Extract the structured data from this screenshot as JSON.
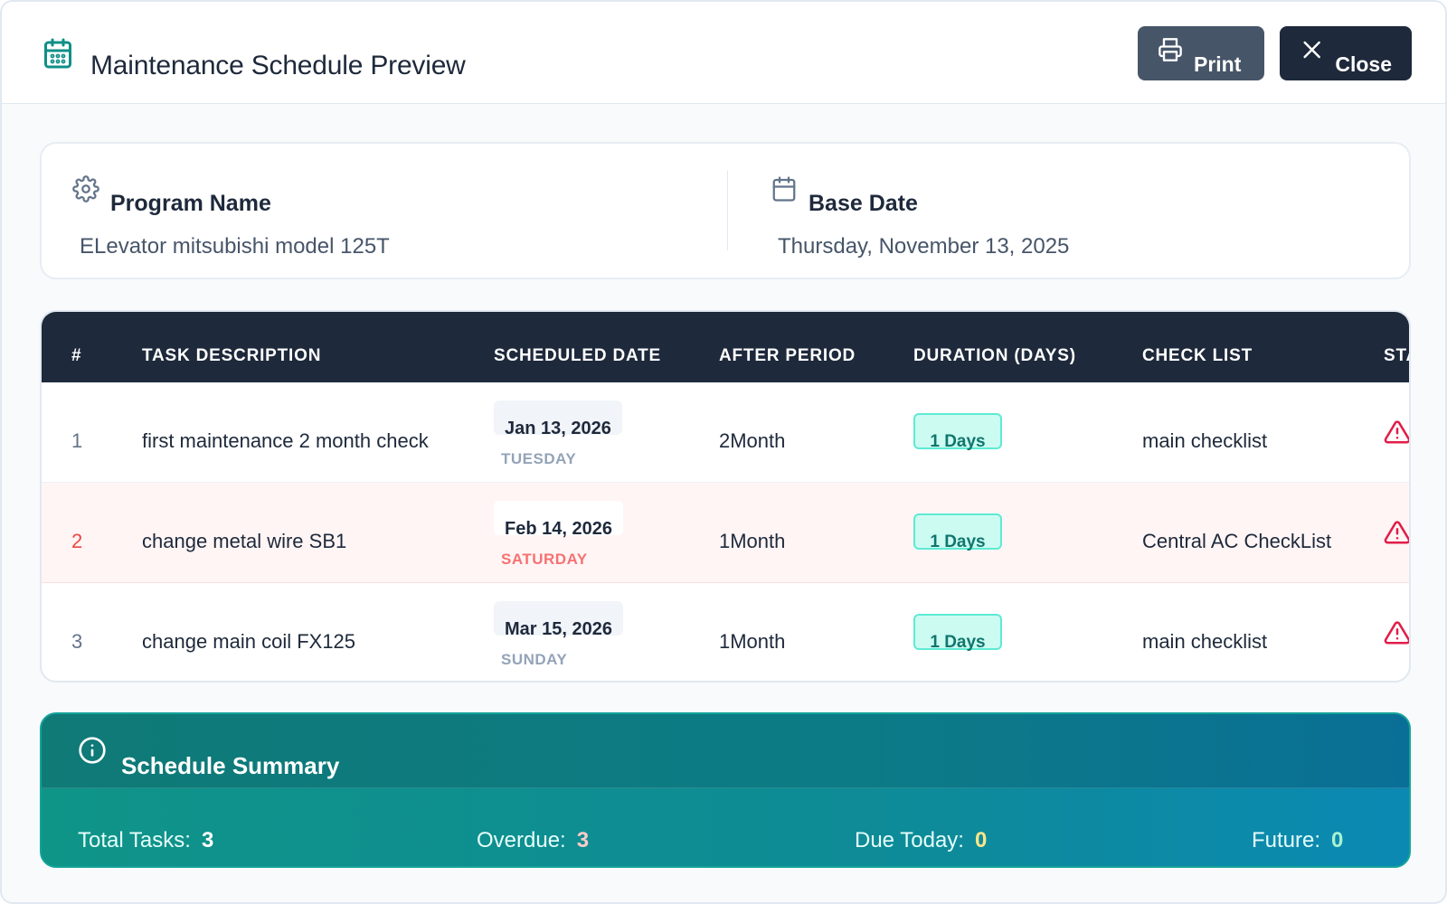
{
  "header": {
    "title": "Maintenance Schedule Preview",
    "print_label": "Print",
    "close_label": "Close"
  },
  "info": {
    "program_label": "Program Name",
    "program_value": "ELevator mitsubishi model 125T",
    "base_date_label": "Base Date",
    "base_date_value": "Thursday, November 13, 2025"
  },
  "table": {
    "columns": [
      "#",
      "TASK DESCRIPTION",
      "SCHEDULED DATE",
      "AFTER PERIOD",
      "DURATION (DAYS)",
      "CHECK LIST",
      "STA"
    ],
    "rows": [
      {
        "num": "1",
        "task": "first maintenance 2 month check",
        "date": "Jan 13, 2026",
        "day": "TUESDAY",
        "period": "2Month",
        "duration": "1 Days",
        "checklist": "main checklist",
        "status_icon": "warning-icon"
      },
      {
        "num": "2",
        "task": "change metal wire SB1",
        "date": "Feb 14, 2026",
        "day": "SATURDAY",
        "period": "1Month",
        "duration": "1 Days",
        "checklist": "Central AC CheckList",
        "status_icon": "warning-icon"
      },
      {
        "num": "3",
        "task": "change main coil FX125",
        "date": "Mar 15, 2026",
        "day": "SUNDAY",
        "period": "1Month",
        "duration": "1 Days",
        "checklist": "main checklist",
        "status_icon": "warning-icon"
      }
    ]
  },
  "summary": {
    "title": "Schedule Summary",
    "total_label": "Total Tasks:",
    "total_value": "3",
    "overdue_label": "Overdue:",
    "overdue_value": "3",
    "due_today_label": "Due Today:",
    "due_today_value": "0",
    "future_label": "Future:",
    "future_value": "0"
  },
  "colors": {
    "accent": "#0f8f87",
    "header_dark": "#1e293b",
    "overdue_row": "#fff5f5",
    "warning": "#e11d48"
  }
}
